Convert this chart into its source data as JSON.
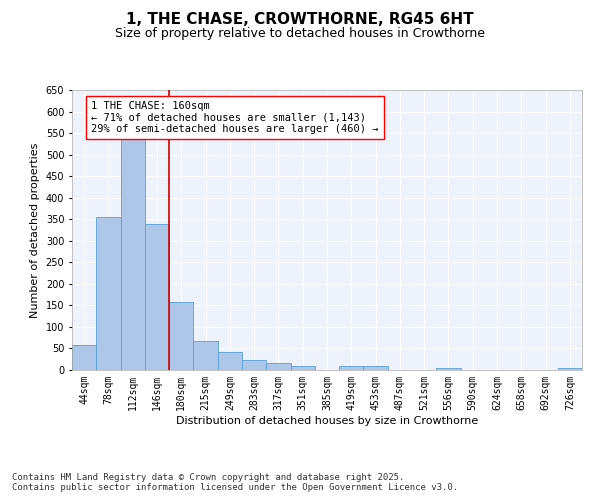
{
  "title_line1": "1, THE CHASE, CROWTHORNE, RG45 6HT",
  "title_line2": "Size of property relative to detached houses in Crowthorne",
  "xlabel": "Distribution of detached houses by size in Crowthorne",
  "ylabel": "Number of detached properties",
  "categories": [
    "44sqm",
    "78sqm",
    "112sqm",
    "146sqm",
    "180sqm",
    "215sqm",
    "249sqm",
    "283sqm",
    "317sqm",
    "351sqm",
    "385sqm",
    "419sqm",
    "453sqm",
    "487sqm",
    "521sqm",
    "556sqm",
    "590sqm",
    "624sqm",
    "658sqm",
    "692sqm",
    "726sqm"
  ],
  "values": [
    58,
    356,
    546,
    338,
    158,
    68,
    42,
    24,
    17,
    10,
    0,
    9,
    10,
    0,
    0,
    5,
    0,
    0,
    0,
    0,
    5
  ],
  "bar_color": "#aec6e8",
  "bar_edge_color": "#5a9fd4",
  "vline_color": "#cc0000",
  "vline_pos": 3.5,
  "annotation_box_text": "1 THE CHASE: 160sqm\n← 71% of detached houses are smaller (1,143)\n29% of semi-detached houses are larger (460) →",
  "ylim": [
    0,
    650
  ],
  "yticks": [
    0,
    50,
    100,
    150,
    200,
    250,
    300,
    350,
    400,
    450,
    500,
    550,
    600,
    650
  ],
  "background_color": "#eef2fb",
  "grid_color": "#ffffff",
  "footer_text": "Contains HM Land Registry data © Crown copyright and database right 2025.\nContains public sector information licensed under the Open Government Licence v3.0.",
  "title_fontsize": 11,
  "subtitle_fontsize": 9,
  "axis_label_fontsize": 8,
  "tick_fontsize": 7,
  "annotation_fontsize": 7.5,
  "footer_fontsize": 6.5,
  "ylabel_fontsize": 8
}
